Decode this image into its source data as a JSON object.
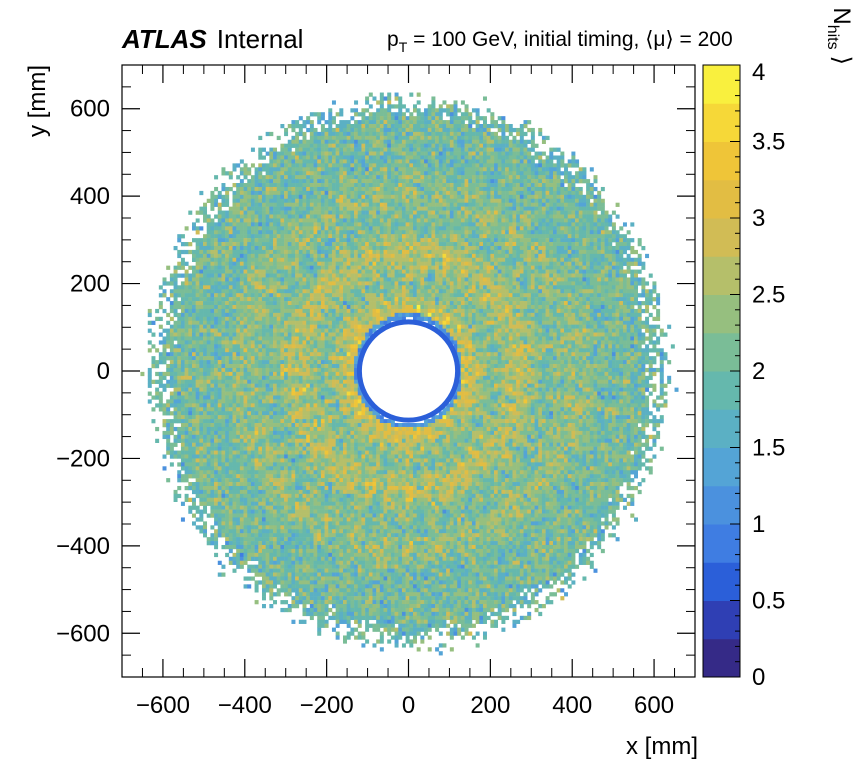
{
  "chart_data": {
    "type": "heatmap",
    "experiment": "ATLAS",
    "status_label": "Internal",
    "annotation": {
      "p_symbol": "p",
      "p_subscript": "T",
      "text": " = 100 GeV, initial timing,  ⟨μ⟩ = 200"
    },
    "xlabel": "x [mm]",
    "ylabel": "y [mm]",
    "zlabel": {
      "open": "⟨ N",
      "subscript": "hits",
      "close": "⟩"
    },
    "xlim": [
      -700,
      700
    ],
    "ylim": [
      -700,
      700
    ],
    "zlim": [
      0,
      4
    ],
    "x_ticks": [
      {
        "value": -600,
        "label": "−600"
      },
      {
        "value": -400,
        "label": "−400"
      },
      {
        "value": -200,
        "label": "−200"
      },
      {
        "value": 0,
        "label": "0"
      },
      {
        "value": 200,
        "label": "200"
      },
      {
        "value": 400,
        "label": "400"
      },
      {
        "value": 600,
        "label": "600"
      }
    ],
    "y_ticks": [
      {
        "value": -600,
        "label": "−600"
      },
      {
        "value": -400,
        "label": "−400"
      },
      {
        "value": -200,
        "label": "−200"
      },
      {
        "value": 0,
        "label": "0"
      },
      {
        "value": 200,
        "label": "200"
      },
      {
        "value": 400,
        "label": "400"
      },
      {
        "value": 600,
        "label": "600"
      }
    ],
    "z_ticks": [
      {
        "value": 0,
        "label": "0"
      },
      {
        "value": 0.5,
        "label": "0.5"
      },
      {
        "value": 1,
        "label": "1"
      },
      {
        "value": 1.5,
        "label": "1.5"
      },
      {
        "value": 2,
        "label": "2"
      },
      {
        "value": 2.5,
        "label": "2.5"
      },
      {
        "value": 3,
        "label": "3"
      },
      {
        "value": 3.5,
        "label": "3.5"
      },
      {
        "value": 4,
        "label": "4"
      }
    ],
    "distribution": {
      "shape": "annulus",
      "inner_radius": 120,
      "outer_radius": 640,
      "mean_value_near_inner_edge": 0.9,
      "mean_value_bulk": 2.6,
      "mean_value_outer_edge": 1.8
    },
    "palette": [
      "#352a87",
      "#2f3fb4",
      "#2b5fd9",
      "#3f7de2",
      "#4b91de",
      "#54a4d6",
      "#5bb0c4",
      "#65b8ad",
      "#7abd97",
      "#96bf7f",
      "#b5bf6a",
      "#d1bc55",
      "#e2bd43",
      "#efc538",
      "#f6d838",
      "#f9f03e"
    ]
  }
}
